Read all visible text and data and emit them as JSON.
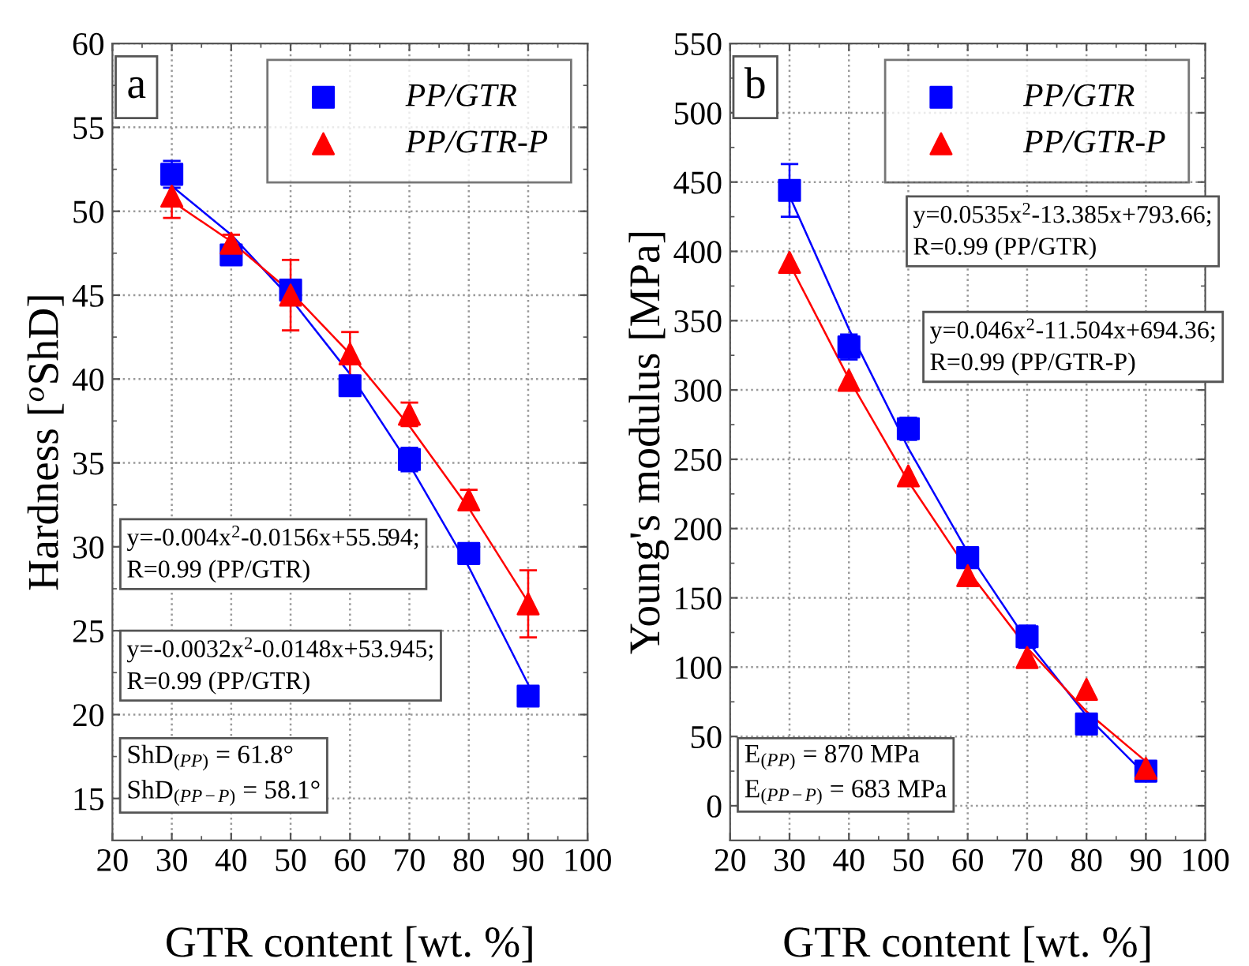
{
  "chart_data": [
    {
      "type": "scatter",
      "xlabel": "GTR content [wt. %]",
      "ylabel": "Hardness [$^{o}$ShD]",
      "xlim": [
        20,
        100
      ],
      "xticks": [
        20,
        30,
        40,
        50,
        60,
        70,
        80,
        90,
        100
      ],
      "ylim": [
        12.5,
        60
      ],
      "yticks": [
        15,
        20,
        25,
        30,
        35,
        40,
        45,
        50,
        55,
        60
      ],
      "grid": true,
      "legend": "top right",
      "annotations": [
        "a",
        "y=-0.004x$^{2}$-0.0156x+55.594;\nR=0.99 (PP/GTR)",
        "y=-0.0032x$^{2}$-0.0148x+53.945;\nR=0.99 (PP/GTR)",
        "ShD$_{(PP)}$ = 61.8°\nShD$_{(PP−P)}$ = 58.1°"
      ],
      "series": [
        {
          "name": "PP/GTR",
          "color": "#0000ff",
          "marker": "square",
          "x": [
            30,
            40,
            50,
            60,
            70,
            80,
            90
          ],
          "values": [
            52.2,
            47.4,
            45.3,
            39.6,
            35.2,
            29.6,
            21.1
          ],
          "errors": [
            0.8,
            0.3,
            0.4,
            0.3,
            0.7,
            0.3,
            0.5
          ]
        },
        {
          "name": "PP/GTR-P",
          "color": "#ff0000",
          "marker": "triangle",
          "x": [
            30,
            40,
            50,
            60,
            70,
            80,
            90
          ],
          "values": [
            50.9,
            48.1,
            45.0,
            41.5,
            37.9,
            32.8,
            26.6
          ],
          "errors": [
            1.3,
            0.5,
            2.1,
            1.3,
            0.7,
            0.6,
            2.0
          ]
        },
        {
          "type": "line",
          "color": "#0000ff",
          "x": [
            30,
            40,
            50,
            60,
            70,
            80,
            90
          ],
          "values": [
            51.5,
            48.6,
            44.8,
            40.3,
            34.9,
            28.8,
            21.8
          ]
        },
        {
          "type": "line",
          "color": "#ff0000",
          "x": [
            30,
            40,
            50,
            60,
            70,
            80,
            90
          ],
          "values": [
            50.6,
            48.2,
            45.2,
            41.5,
            37.2,
            32.3,
            26.7
          ]
        }
      ]
    },
    {
      "type": "scatter",
      "xlabel": "GTR content [wt. %]",
      "ylabel": "Young's modulus [MPa]",
      "xlim": [
        20,
        100
      ],
      "xticks": [
        20,
        30,
        40,
        50,
        60,
        70,
        80,
        90,
        100
      ],
      "ylim": [
        -25,
        550
      ],
      "yticks": [
        0,
        50,
        100,
        150,
        200,
        250,
        300,
        350,
        400,
        450,
        500,
        550
      ],
      "grid": true,
      "legend": "top right",
      "annotations": [
        "b",
        "y=0.0535x$^{2}$-13.385x+793.66;\nR=0.99 (PP/GTR)",
        "y=0.046x$^{2}$-11.504x+694.36;\nR=0.99 (PP/GTR-P)",
        "E$_{(PP)}$ = 870 MPa\nE$_{(PP−P)}$ = 683 MPa"
      ],
      "series": [
        {
          "name": "PP/GTR",
          "color": "#0000ff",
          "marker": "square",
          "x": [
            30,
            40,
            50,
            60,
            70,
            80,
            90
          ],
          "values": [
            444,
            331,
            272,
            179,
            122,
            59,
            25
          ],
          "errors": [
            19,
            9,
            8,
            4,
            8,
            4,
            null
          ]
        },
        {
          "name": "PP/GTR-P",
          "color": "#ff0000",
          "marker": "triangle",
          "x": [
            30,
            40,
            50,
            60,
            70,
            80,
            90
          ],
          "values": [
            392,
            307,
            238,
            166,
            107,
            84,
            27
          ],
          "errors": [
            null,
            null,
            null,
            null,
            null,
            null,
            null
          ]
        },
        {
          "type": "line",
          "color": "#0000ff",
          "x": [
            30,
            40,
            50,
            60,
            70,
            80,
            90
          ],
          "values": [
            440,
            344,
            258,
            183,
            119,
            65,
            22
          ]
        },
        {
          "type": "line",
          "color": "#ff0000",
          "x": [
            30,
            40,
            50,
            60,
            70,
            80,
            90
          ],
          "values": [
            391,
            308,
            234,
            170,
            114,
            68,
            32
          ]
        }
      ]
    }
  ]
}
